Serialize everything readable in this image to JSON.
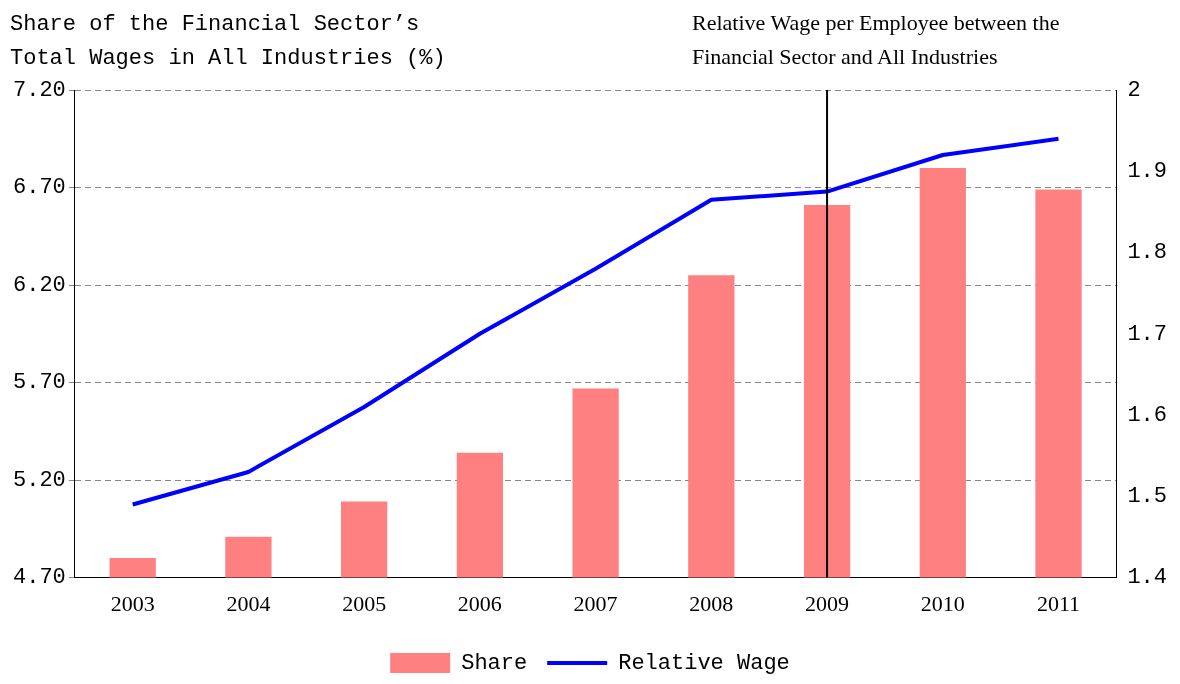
{
  "chart_data": {
    "type": "bar",
    "ylabel": "Share of the Financial Sector’s Total Wages in All Industries (%)",
    "y2label": "Relative Wage per Employee between the Financial Sector and All Industries",
    "categories": [
      "2003",
      "2004",
      "2005",
      "2006",
      "2007",
      "2008",
      "2009",
      "2010",
      "2011"
    ],
    "series": [
      {
        "name": "Share",
        "color": "#ff8080",
        "values": [
          4.8,
          4.91,
          5.09,
          5.34,
          5.67,
          6.25,
          6.61,
          6.8,
          6.69
        ]
      },
      {
        "name": "Relative Wage",
        "type": "line",
        "axis": "y2",
        "color": "#0000ff",
        "values": [
          1.49,
          1.53,
          1.61,
          1.7,
          1.78,
          1.865,
          1.875,
          1.92,
          1.94
        ]
      }
    ],
    "ylim": [
      4.7,
      7.2
    ],
    "yticks": [
      {
        "value": 4.7,
        "label": "4.70"
      },
      {
        "value": 5.2,
        "label": "5.20"
      },
      {
        "value": 5.7,
        "label": "5.70"
      },
      {
        "value": 6.2,
        "label": "6.20"
      },
      {
        "value": 6.7,
        "label": "6.70"
      },
      {
        "value": 7.2,
        "label": "7.20"
      }
    ],
    "y2lim": [
      1.4,
      2
    ],
    "y2ticks": [
      1.4,
      1.5,
      1.6,
      1.7,
      1.8,
      1.9,
      2
    ],
    "ref_lines": [
      {
        "axis": "x",
        "value": "2009",
        "color": "#000000"
      }
    ],
    "grid": "y",
    "legend": "bottom",
    "marker": "none",
    "line_style": "solid"
  }
}
